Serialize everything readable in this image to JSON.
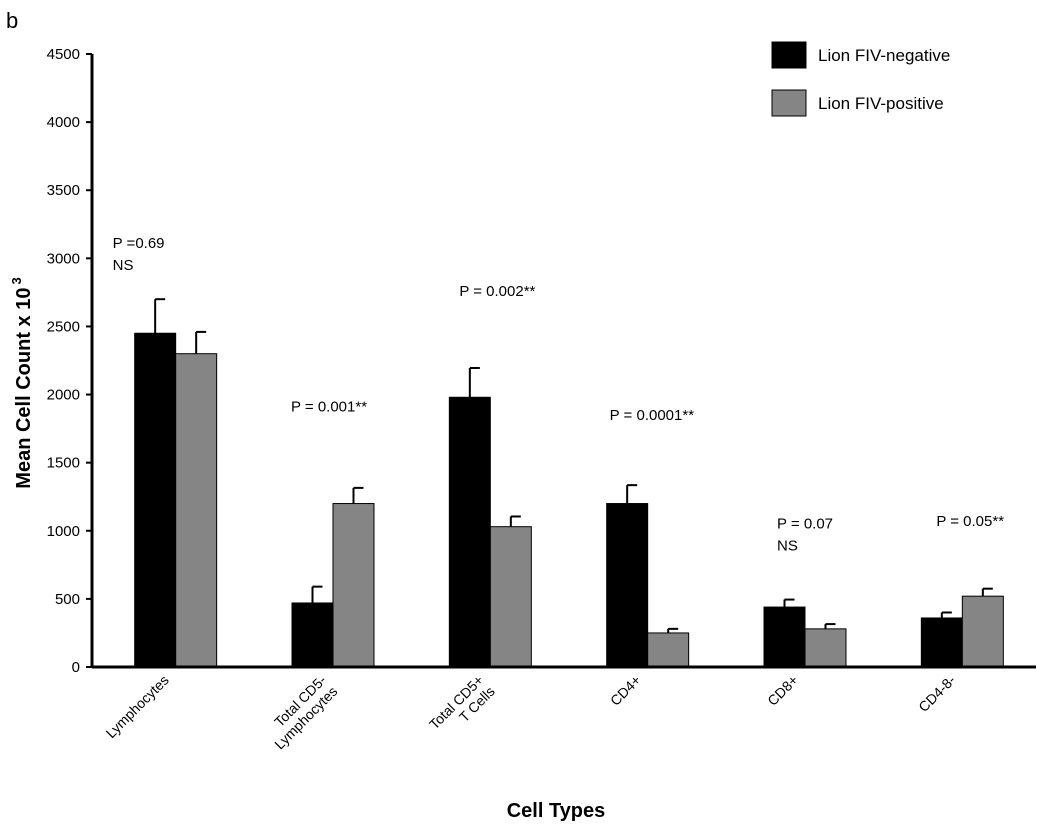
{
  "panel_label": "b",
  "chart_data": {
    "type": "bar",
    "title": "",
    "xlabel": "Cell Types",
    "ylabel": "Mean Cell Count x 10 3",
    "ylim": [
      0,
      4500
    ],
    "yticks": [
      0,
      500,
      1000,
      1500,
      2000,
      2500,
      3000,
      3500,
      4000,
      4500
    ],
    "grid": false,
    "legend_position": "top-right",
    "categories": [
      [
        "Lymphocytes"
      ],
      [
        "Total CD5-",
        "Lymphocytes"
      ],
      [
        "Total CD5+",
        "T Cells"
      ],
      [
        "CD4+"
      ],
      [
        "CD8+"
      ],
      [
        "CD4-8-"
      ]
    ],
    "series": [
      {
        "name": "Lion FIV-negative",
        "color": "#000000",
        "values": [
          2450,
          470,
          1980,
          1200,
          440,
          360
        ],
        "errors": [
          250,
          120,
          215,
          135,
          55,
          40
        ]
      },
      {
        "name": "Lion FIV-positive",
        "color": "#858585",
        "values": [
          2300,
          1200,
          1030,
          250,
          280,
          520
        ],
        "errors": [
          160,
          115,
          75,
          30,
          35,
          55
        ]
      }
    ],
    "annotations": [
      {
        "category": 0,
        "lines": [
          "P =0.69",
          "NS"
        ]
      },
      {
        "category": 1,
        "lines": [
          "P = 0.001**"
        ]
      },
      {
        "category": 2,
        "lines": [
          "P = 0.002**"
        ]
      },
      {
        "category": 3,
        "lines": [
          "P = 0.0001**"
        ]
      },
      {
        "category": 4,
        "lines": [
          "P = 0.07",
          "NS"
        ]
      },
      {
        "category": 5,
        "lines": [
          "P  = 0.05**"
        ]
      }
    ]
  }
}
